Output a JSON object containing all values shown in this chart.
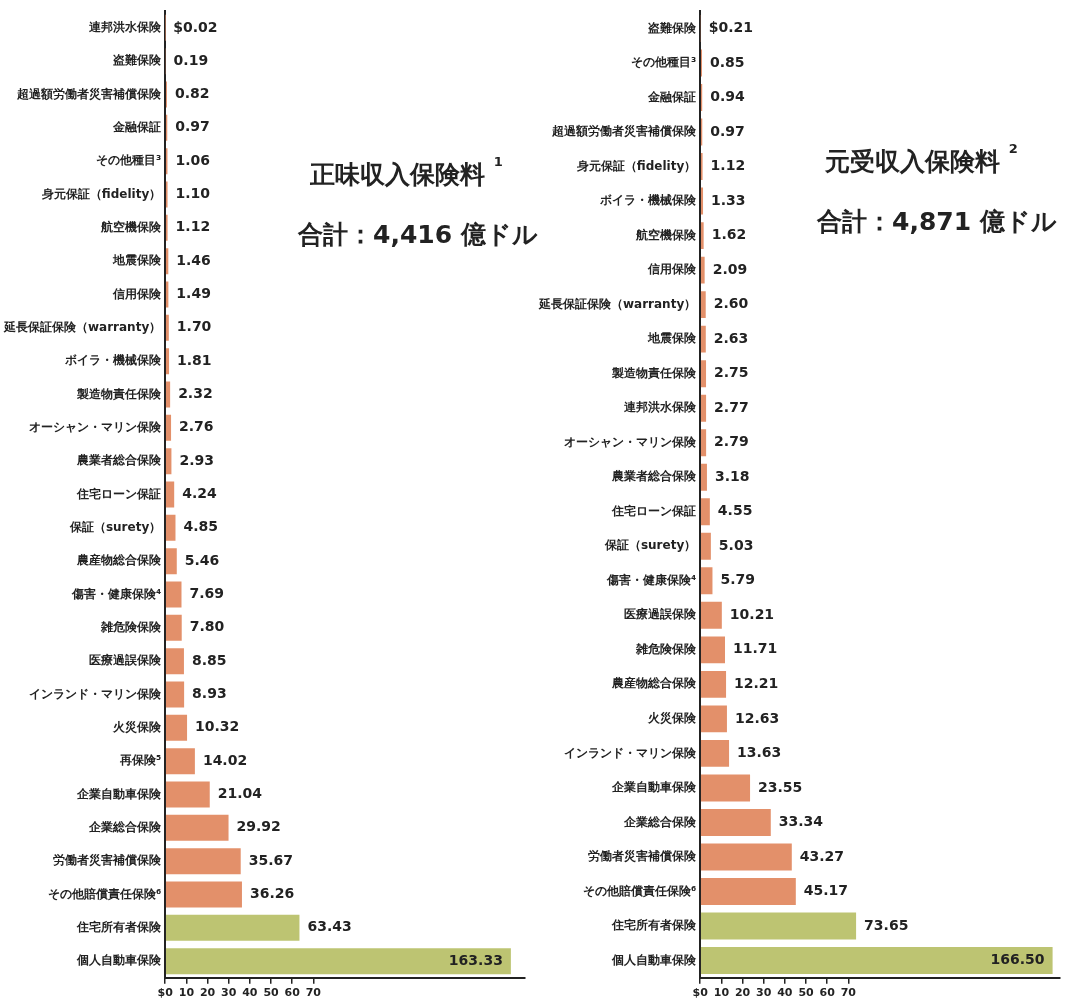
{
  "chart_data": [
    {
      "type": "bar",
      "orientation": "horizontal",
      "title": "正味収入保険料 $^{1}$",
      "subtitle": "合計：4,416 億ドル",
      "categories": [
        "連邦洪水保険",
        "盗難保険",
        "超過額労働者災害補償保険",
        "金融保証",
        "その他種目³",
        "身元保証（fidelity）",
        "航空機保険",
        "地震保険",
        "信用保険",
        "延長保証保険（warranty）",
        "ボイラ・機械保険",
        "製造物責任保険",
        "オーシャン・マリン保険",
        "農業者総合保険",
        "住宅ローン保証",
        "保証（surety）",
        "農産物総合保険",
        "傷害・健康保険⁴",
        "雑危険保険",
        "医療過誤保険",
        "インランド・マリン保険",
        "火災保険",
        "再保険⁵",
        "企業自動車保険",
        "企業総合保険",
        "労働者災害補償保険",
        "その他賠償責任保険⁶",
        "住宅所有者保険",
        "個人自動車保険"
      ],
      "values": [
        0.02,
        0.19,
        0.82,
        0.97,
        1.06,
        1.1,
        1.12,
        1.46,
        1.49,
        1.7,
        1.81,
        2.32,
        2.76,
        2.93,
        4.24,
        4.85,
        5.46,
        7.69,
        7.8,
        8.85,
        8.93,
        10.32,
        14.02,
        21.04,
        29.92,
        35.67,
        36.26,
        63.43,
        163.33
      ],
      "value_labels": [
        "$0.02",
        "0.19",
        "0.82",
        "0.97",
        "1.06",
        "1.10",
        "1.12",
        "1.46",
        "1.49",
        "1.70",
        "1.81",
        "2.32",
        "2.76",
        "2.93",
        "4.24",
        "4.85",
        "5.46",
        "7.69",
        "7.80",
        "8.85",
        "8.93",
        "10.32",
        "14.02",
        "21.04",
        "29.92",
        "35.67",
        "36.26",
        "63.43",
        "163.33"
      ],
      "colors": [
        "#e3906a",
        "#e3906a",
        "#e3906a",
        "#e3906a",
        "#e3906a",
        "#e3906a",
        "#e3906a",
        "#e3906a",
        "#e3906a",
        "#e3906a",
        "#e3906a",
        "#e3906a",
        "#e3906a",
        "#e3906a",
        "#e3906a",
        "#e3906a",
        "#e3906a",
        "#e3906a",
        "#e3906a",
        "#e3906a",
        "#e3906a",
        "#e3906a",
        "#e3906a",
        "#e3906a",
        "#e3906a",
        "#e3906a",
        "#e3906a",
        "#bdc472",
        "#bdc472"
      ],
      "xlim": [
        0,
        170
      ],
      "xticks": [
        {
          "value": 0,
          "label": "$0"
        },
        10,
        20,
        30,
        40,
        50,
        60,
        70
      ],
      "grid": false,
      "legend": false
    },
    {
      "type": "bar",
      "orientation": "horizontal",
      "title": "元受収入保険料 $^{2}$",
      "subtitle": "合計：4,871 億ドル",
      "categories": [
        "盗難保険",
        "その他種目³",
        "金融保証",
        "超過額労働者災害補償保険",
        "身元保証（fidelity）",
        "ボイラ・機械保険",
        "航空機保険",
        "信用保険",
        "延長保証保険（warranty）",
        "地震保険",
        "製造物責任保険",
        "連邦洪水保険",
        "オーシャン・マリン保険",
        "農業者総合保険",
        "住宅ローン保証",
        "保証（surety）",
        "傷害・健康保険⁴",
        "医療過誤保険",
        "雑危険保険",
        "農産物総合保険",
        "火災保険",
        "インランド・マリン保険",
        "企業自動車保険",
        "企業総合保険",
        "労働者災害補償保険",
        "その他賠償責任保険⁶",
        "住宅所有者保険",
        "個人自動車保険"
      ],
      "values": [
        0.21,
        0.85,
        0.94,
        0.97,
        1.12,
        1.33,
        1.62,
        2.09,
        2.6,
        2.63,
        2.75,
        2.77,
        2.79,
        3.18,
        4.55,
        5.03,
        5.79,
        10.21,
        11.71,
        12.21,
        12.63,
        13.63,
        23.55,
        33.34,
        43.27,
        45.17,
        73.65,
        166.5
      ],
      "value_labels": [
        "$0.21",
        "0.85",
        "0.94",
        "0.97",
        "1.12",
        "1.33",
        "1.62",
        "2.09",
        "2.60",
        "2.63",
        "2.75",
        "2.77",
        "2.79",
        "3.18",
        "4.55",
        "5.03",
        "5.79",
        "10.21",
        "11.71",
        "12.21",
        "12.63",
        "13.63",
        "23.55",
        "33.34",
        "43.27",
        "45.17",
        "73.65",
        "166.50"
      ],
      "colors": [
        "#e3906a",
        "#e3906a",
        "#e3906a",
        "#e3906a",
        "#e3906a",
        "#e3906a",
        "#e3906a",
        "#e3906a",
        "#e3906a",
        "#e3906a",
        "#e3906a",
        "#e3906a",
        "#e3906a",
        "#e3906a",
        "#e3906a",
        "#e3906a",
        "#e3906a",
        "#e3906a",
        "#e3906a",
        "#e3906a",
        "#e3906a",
        "#e3906a",
        "#e3906a",
        "#e3906a",
        "#e3906a",
        "#e3906a",
        "#bdc472",
        "#bdc472"
      ],
      "xlim": [
        0,
        170
      ],
      "xticks": [
        {
          "value": 0,
          "label": "$0"
        },
        10,
        20,
        30,
        40,
        50,
        60,
        70
      ],
      "grid": false,
      "legend": false
    }
  ]
}
